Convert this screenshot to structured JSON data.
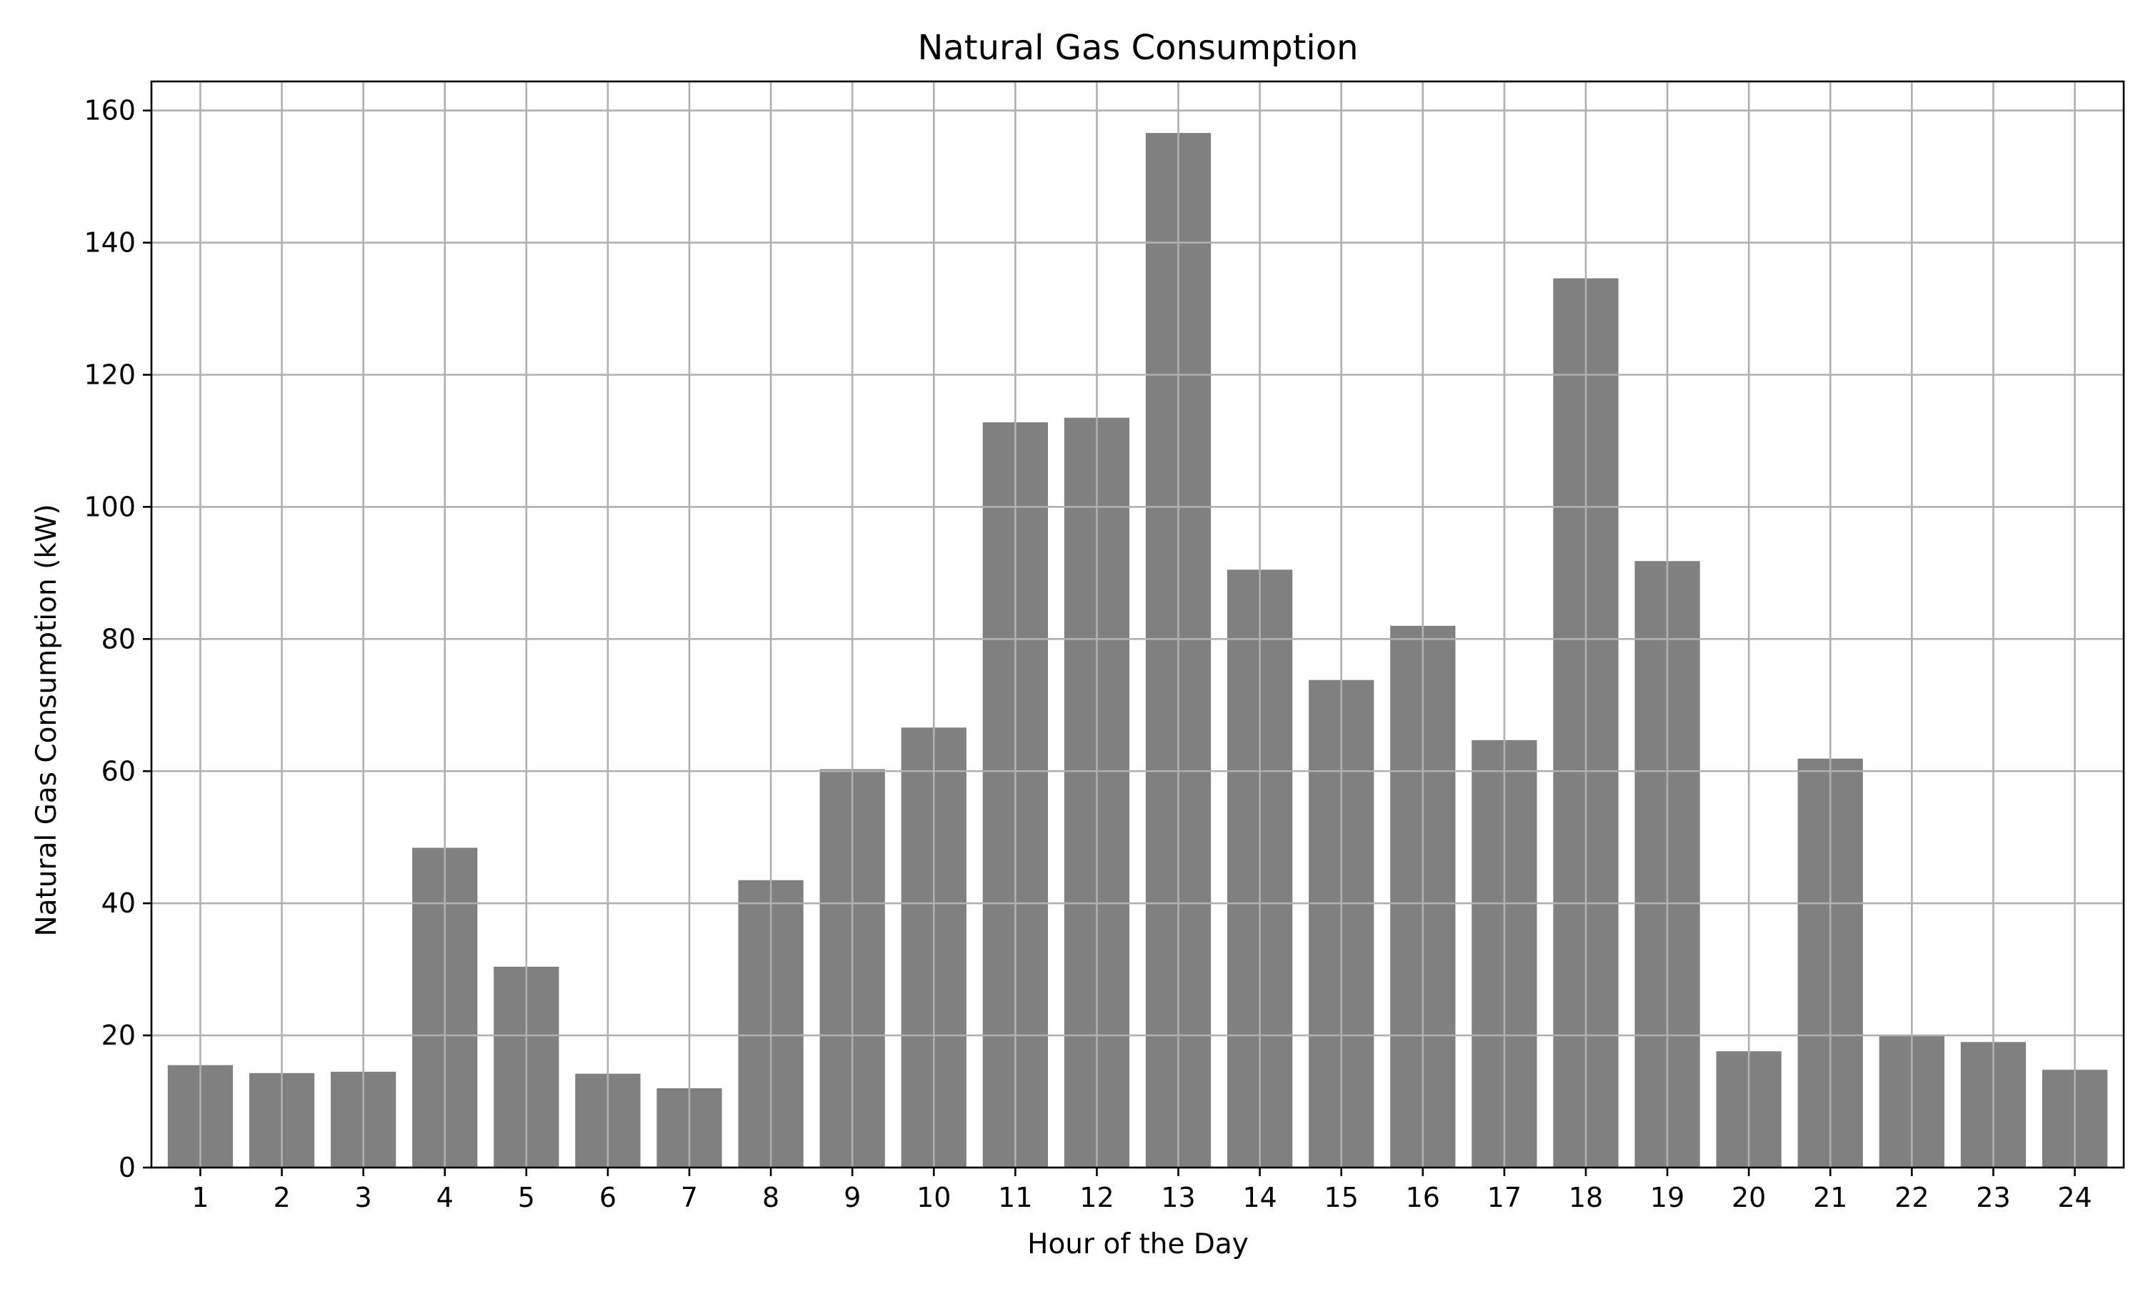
{
  "chart_data": {
    "type": "bar",
    "title": "Natural Gas Consumption",
    "xlabel": "Hour of the Day",
    "ylabel": "Natural Gas Consumption (kW)",
    "categories": [
      "1",
      "2",
      "3",
      "4",
      "5",
      "6",
      "7",
      "8",
      "9",
      "10",
      "11",
      "12",
      "13",
      "14",
      "15",
      "16",
      "17",
      "18",
      "19",
      "20",
      "21",
      "22",
      "23",
      "24"
    ],
    "values": [
      15.5,
      14.3,
      14.5,
      48.4,
      30.4,
      14.2,
      12.0,
      43.5,
      60.3,
      66.6,
      112.8,
      113.5,
      156.6,
      90.5,
      73.8,
      82.0,
      64.7,
      134.6,
      91.8,
      17.6,
      61.9,
      19.9,
      19.0,
      14.8
    ],
    "yticks": [
      0,
      20,
      40,
      60,
      80,
      100,
      120,
      140,
      160
    ],
    "ylim": [
      0,
      164.4
    ],
    "bar_color": "#808080",
    "grid": true
  }
}
